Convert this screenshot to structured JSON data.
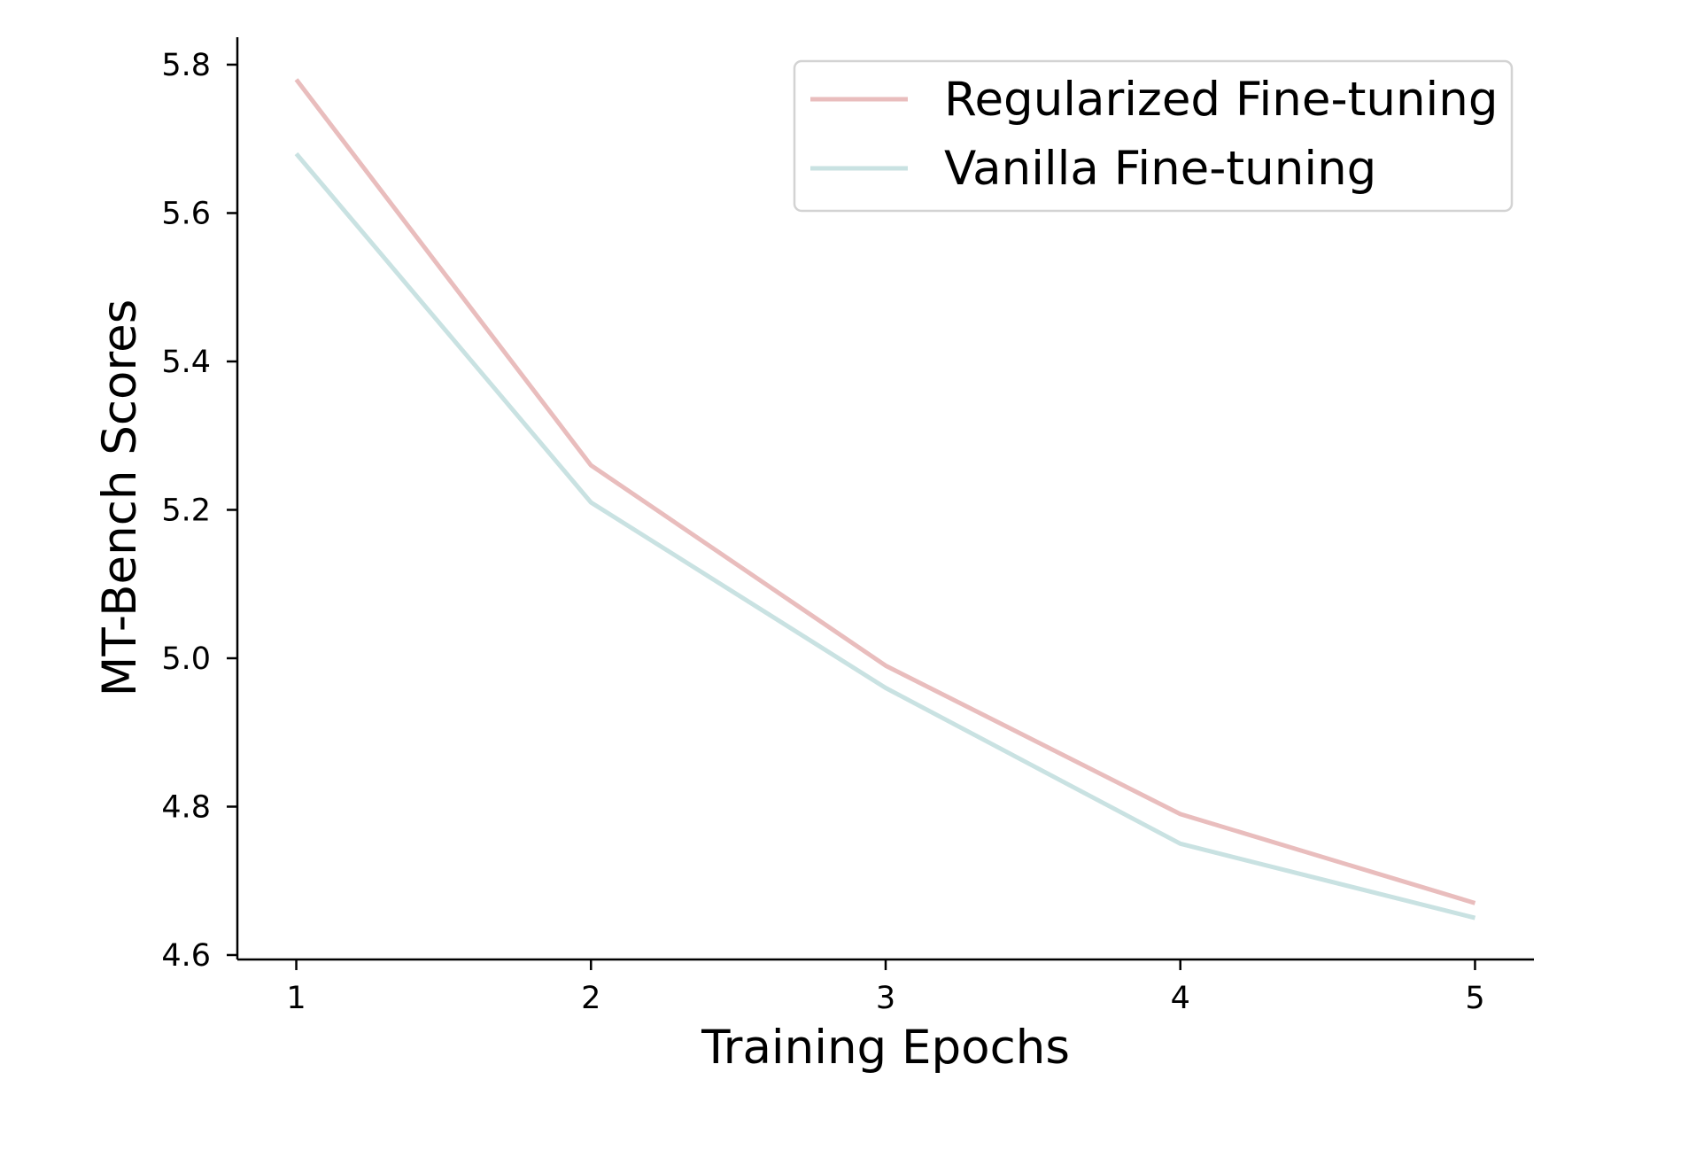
{
  "chart_data": {
    "type": "line",
    "title": "",
    "xlabel": "Training Epochs",
    "ylabel": "MT-Bench Scores",
    "x": [
      1,
      2,
      3,
      4,
      5
    ],
    "xticks": [
      "1",
      "2",
      "3",
      "4",
      "5"
    ],
    "yticks": [
      "4.6",
      "4.8",
      "5.0",
      "5.2",
      "5.4",
      "5.6",
      "5.8"
    ],
    "xlim": [
      0.8,
      5.2
    ],
    "ylim": [
      4.594,
      5.837
    ],
    "grid": false,
    "legend_position": "top-right",
    "series": [
      {
        "name": "Regularized Fine-tuning",
        "color": "#e9bdbd",
        "values": [
          5.78,
          5.26,
          4.99,
          4.79,
          4.67
        ]
      },
      {
        "name": "Vanilla Fine-tuning",
        "color": "#c9e2e2",
        "values": [
          5.68,
          5.21,
          4.96,
          4.75,
          4.65
        ]
      }
    ]
  }
}
